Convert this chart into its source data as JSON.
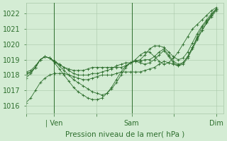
{
  "bg_color": "#d4ecd4",
  "grid_color": "#a8c8a8",
  "line_color": "#2d6e2d",
  "marker_color": "#2d6e2d",
  "xlabel": "Pression niveau de la mer( hPa )",
  "xlabel_color": "#2d6e2d",
  "tick_color": "#2d6e2d",
  "ylim": [
    1015.5,
    1022.7
  ],
  "yticks": [
    1016,
    1017,
    1018,
    1019,
    1020,
    1021,
    1022
  ],
  "xtick_labels": [
    "",
    "| Ven",
    "",
    "Sam",
    "",
    "Dim"
  ],
  "xtick_positions": [
    0,
    16,
    40,
    60,
    84,
    108
  ],
  "vlines": [
    16,
    60
  ],
  "series": [
    [
      1018.1,
      1018.2,
      1018.5,
      1019.0,
      1019.2,
      1019.1,
      1018.9,
      1018.7,
      1018.5,
      1018.4,
      1018.3,
      1018.3,
      1018.3,
      1018.4,
      1018.5,
      1018.5,
      1018.5,
      1018.5,
      1018.5,
      1018.5,
      1018.5,
      1018.6,
      1018.8,
      1019.0,
      1019.3,
      1019.5,
      1019.5,
      1019.2,
      1018.9,
      1018.7,
      1018.8,
      1019.1,
      1019.5,
      1020.0,
      1020.5,
      1021.0,
      1021.3,
      1021.6,
      1021.9,
      1022.2,
      1022.4
    ],
    [
      1018.2,
      1018.3,
      1018.6,
      1019.0,
      1019.2,
      1019.1,
      1018.9,
      1018.6,
      1018.3,
      1018.0,
      1017.7,
      1017.5,
      1017.3,
      1017.1,
      1016.9,
      1016.8,
      1016.7,
      1016.8,
      1017.1,
      1017.5,
      1018.0,
      1018.5,
      1018.8,
      1018.9,
      1018.9,
      1019.0,
      1019.0,
      1019.2,
      1019.5,
      1019.7,
      1019.3,
      1018.9,
      1018.7,
      1018.8,
      1019.2,
      1019.8,
      1020.4,
      1020.9,
      1021.4,
      1021.8,
      1022.2
    ],
    [
      1017.8,
      1018.1,
      1018.5,
      1019.0,
      1019.2,
      1019.1,
      1018.8,
      1018.4,
      1018.0,
      1017.6,
      1017.2,
      1016.9,
      1016.7,
      1016.5,
      1016.4,
      1016.4,
      1016.5,
      1016.8,
      1017.2,
      1017.7,
      1018.2,
      1018.6,
      1018.8,
      1018.9,
      1018.8,
      1018.7,
      1018.8,
      1019.0,
      1019.3,
      1019.6,
      1019.2,
      1018.8,
      1018.6,
      1018.7,
      1019.1,
      1019.7,
      1020.3,
      1020.9,
      1021.4,
      1021.9,
      1022.3
    ],
    [
      1018.0,
      1018.2,
      1018.5,
      1019.0,
      1019.2,
      1019.1,
      1018.9,
      1018.7,
      1018.5,
      1018.3,
      1018.1,
      1018.0,
      1018.0,
      1018.0,
      1018.1,
      1018.1,
      1018.2,
      1018.3,
      1018.4,
      1018.6,
      1018.7,
      1018.8,
      1018.8,
      1018.9,
      1019.0,
      1019.3,
      1019.7,
      1019.9,
      1019.9,
      1019.8,
      1019.5,
      1019.2,
      1019.0,
      1019.1,
      1019.5,
      1020.1,
      1020.7,
      1021.2,
      1021.6,
      1022.0,
      1022.3
    ],
    [
      1016.2,
      1016.5,
      1017.0,
      1017.5,
      1017.8,
      1018.0,
      1018.1,
      1018.1,
      1018.1,
      1018.0,
      1017.9,
      1017.8,
      1017.7,
      1017.7,
      1017.8,
      1017.9,
      1018.0,
      1018.0,
      1018.0,
      1018.1,
      1018.2,
      1018.2,
      1018.2,
      1018.2,
      1018.2,
      1018.3,
      1018.4,
      1018.5,
      1018.7,
      1018.9,
      1018.8,
      1018.7,
      1018.6,
      1018.8,
      1019.2,
      1019.8,
      1020.5,
      1021.1,
      1021.5,
      1021.9,
      1022.3
    ]
  ]
}
